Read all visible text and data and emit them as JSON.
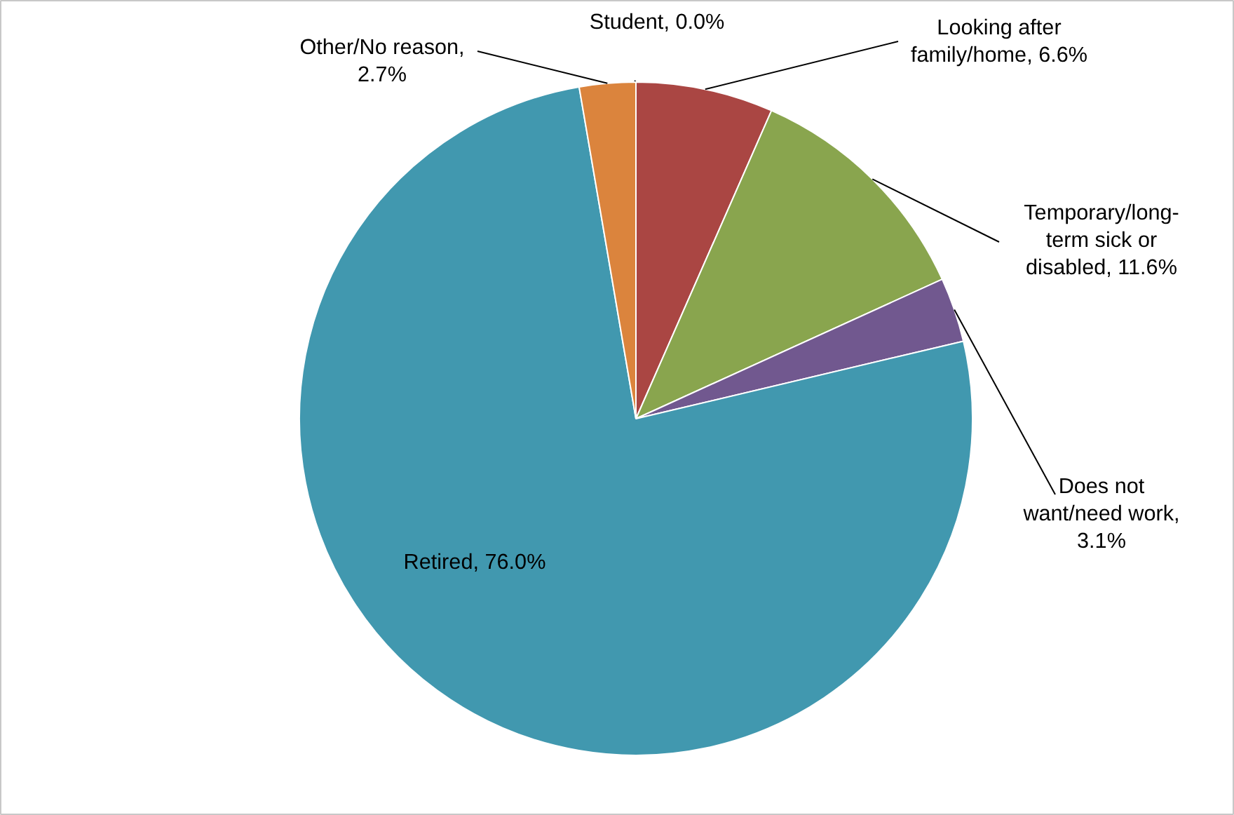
{
  "chart_data": {
    "type": "pie",
    "categories": [
      "Student",
      "Looking after family/home",
      "Temporary/long-term sick or disabled",
      "Does not want/need work",
      "Retired",
      "Other/No reason"
    ],
    "values": [
      0.0,
      6.6,
      11.6,
      3.1,
      76.0,
      2.7
    ],
    "colors": [
      "#4572a7",
      "#aa4643",
      "#89a54e",
      "#71588f",
      "#4198af",
      "#db843d"
    ],
    "value_labels": [
      ", 0.0%",
      ", 6.6%",
      ", 11.6%",
      ", 3.1%",
      ", 76.0%",
      ", 2.7%"
    ]
  }
}
